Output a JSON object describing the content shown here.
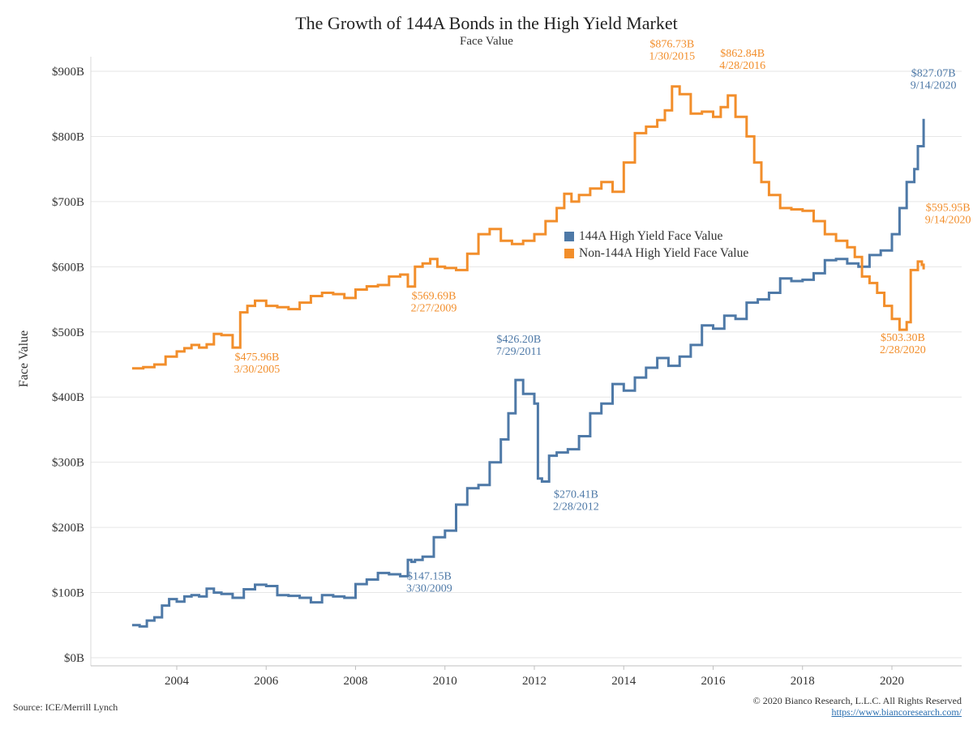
{
  "title": "The Growth of 144A Bonds in the High Yield Market",
  "subtitle": "Face Value",
  "source": "Source: ICE/Merrill Lynch",
  "copyright": "© 2020 Bianco Research, L.L.C. All Rights Reserved",
  "url": "https://www.biancoresearch.com/",
  "chart_data": {
    "type": "line",
    "title": "The Growth of 144A Bonds in the High Yield Market",
    "subtitle": "Face Value",
    "xlabel": "",
    "ylabel": "Face Value",
    "xlim": [
      2002.0,
      2021.5
    ],
    "ylim": [
      0,
      900
    ],
    "x_ticks": [
      2004,
      2006,
      2008,
      2010,
      2012,
      2014,
      2016,
      2018,
      2020
    ],
    "x_tick_labels": [
      "2004",
      "2006",
      "2008",
      "2010",
      "2012",
      "2014",
      "2016",
      "2018",
      "2020"
    ],
    "y_ticks": [
      0,
      100,
      200,
      300,
      400,
      500,
      600,
      700,
      800,
      900
    ],
    "y_tick_labels": [
      "$0B",
      "$100B",
      "$200B",
      "$300B",
      "$400B",
      "$500B",
      "$600B",
      "$700B",
      "$800B",
      "$900B"
    ],
    "grid": "horizontal",
    "line_style": "step",
    "legend_position": "center-right",
    "series": [
      {
        "name": "144A High Yield Face Value",
        "color": "#4e79a7",
        "points": [
          [
            2003.0,
            50
          ],
          [
            2003.17,
            48
          ],
          [
            2003.33,
            57
          ],
          [
            2003.5,
            62
          ],
          [
            2003.67,
            80
          ],
          [
            2003.83,
            90
          ],
          [
            2004.0,
            86
          ],
          [
            2004.17,
            94
          ],
          [
            2004.33,
            96
          ],
          [
            2004.5,
            94
          ],
          [
            2004.67,
            106
          ],
          [
            2004.83,
            100
          ],
          [
            2005.0,
            98
          ],
          [
            2005.25,
            92
          ],
          [
            2005.5,
            105
          ],
          [
            2005.75,
            112
          ],
          [
            2006.0,
            110
          ],
          [
            2006.25,
            96
          ],
          [
            2006.5,
            95
          ],
          [
            2006.75,
            92
          ],
          [
            2007.0,
            85
          ],
          [
            2007.25,
            96
          ],
          [
            2007.5,
            94
          ],
          [
            2007.75,
            92
          ],
          [
            2008.0,
            113
          ],
          [
            2008.25,
            120
          ],
          [
            2008.5,
            130
          ],
          [
            2008.75,
            128
          ],
          [
            2009.0,
            125
          ],
          [
            2009.17,
            150
          ],
          [
            2009.25,
            147.15
          ],
          [
            2009.33,
            150
          ],
          [
            2009.5,
            155
          ],
          [
            2009.75,
            185
          ],
          [
            2010.0,
            195
          ],
          [
            2010.25,
            235
          ],
          [
            2010.5,
            260
          ],
          [
            2010.75,
            265
          ],
          [
            2011.0,
            300
          ],
          [
            2011.25,
            335
          ],
          [
            2011.42,
            375
          ],
          [
            2011.58,
            426.2
          ],
          [
            2011.75,
            405
          ],
          [
            2012.0,
            390
          ],
          [
            2012.08,
            275
          ],
          [
            2012.17,
            270.41
          ],
          [
            2012.33,
            310
          ],
          [
            2012.5,
            315
          ],
          [
            2012.75,
            320
          ],
          [
            2013.0,
            340
          ],
          [
            2013.25,
            375
          ],
          [
            2013.5,
            390
          ],
          [
            2013.75,
            420
          ],
          [
            2014.0,
            410
          ],
          [
            2014.25,
            430
          ],
          [
            2014.5,
            445
          ],
          [
            2014.75,
            460
          ],
          [
            2015.0,
            448
          ],
          [
            2015.25,
            462
          ],
          [
            2015.5,
            480
          ],
          [
            2015.75,
            510
          ],
          [
            2016.0,
            505
          ],
          [
            2016.25,
            525
          ],
          [
            2016.5,
            520
          ],
          [
            2016.75,
            545
          ],
          [
            2017.0,
            550
          ],
          [
            2017.25,
            560
          ],
          [
            2017.5,
            582
          ],
          [
            2017.75,
            578
          ],
          [
            2018.0,
            580
          ],
          [
            2018.25,
            590
          ],
          [
            2018.5,
            610
          ],
          [
            2018.75,
            612
          ],
          [
            2019.0,
            605
          ],
          [
            2019.25,
            600
          ],
          [
            2019.5,
            618
          ],
          [
            2019.75,
            625
          ],
          [
            2020.0,
            650
          ],
          [
            2020.17,
            690
          ],
          [
            2020.33,
            730
          ],
          [
            2020.5,
            750
          ],
          [
            2020.58,
            785
          ],
          [
            2020.71,
            827.07
          ]
        ],
        "annotations": [
          {
            "x": 2009.25,
            "y": 147.15,
            "value": "$147.15B",
            "date": "3/30/2009"
          },
          {
            "x": 2011.58,
            "y": 426.2,
            "value": "$426.20B",
            "date": "7/29/2011"
          },
          {
            "x": 2012.17,
            "y": 270.41,
            "value": "$270.41B",
            "date": "2/28/2012"
          },
          {
            "x": 2020.71,
            "y": 827.07,
            "value": "$827.07B",
            "date": "9/14/2020"
          }
        ]
      },
      {
        "name": "Non-144A High Yield Face Value",
        "color": "#f28e2b",
        "points": [
          [
            2003.0,
            444
          ],
          [
            2003.25,
            446
          ],
          [
            2003.5,
            450
          ],
          [
            2003.75,
            462
          ],
          [
            2004.0,
            470
          ],
          [
            2004.17,
            475
          ],
          [
            2004.33,
            480
          ],
          [
            2004.5,
            476
          ],
          [
            2004.67,
            481
          ],
          [
            2004.83,
            497
          ],
          [
            2005.0,
            495
          ],
          [
            2005.25,
            475.96
          ],
          [
            2005.42,
            530
          ],
          [
            2005.58,
            540
          ],
          [
            2005.75,
            548
          ],
          [
            2006.0,
            540
          ],
          [
            2006.25,
            538
          ],
          [
            2006.5,
            535
          ],
          [
            2006.75,
            545
          ],
          [
            2007.0,
            555
          ],
          [
            2007.25,
            560
          ],
          [
            2007.5,
            558
          ],
          [
            2007.75,
            552
          ],
          [
            2008.0,
            565
          ],
          [
            2008.25,
            570
          ],
          [
            2008.5,
            572
          ],
          [
            2008.75,
            585
          ],
          [
            2009.0,
            588
          ],
          [
            2009.17,
            569.69
          ],
          [
            2009.33,
            600
          ],
          [
            2009.5,
            605
          ],
          [
            2009.67,
            612
          ],
          [
            2009.83,
            600
          ],
          [
            2010.0,
            598
          ],
          [
            2010.25,
            595
          ],
          [
            2010.5,
            620
          ],
          [
            2010.75,
            650
          ],
          [
            2011.0,
            658
          ],
          [
            2011.25,
            640
          ],
          [
            2011.5,
            635
          ],
          [
            2011.75,
            640
          ],
          [
            2012.0,
            650
          ],
          [
            2012.25,
            670
          ],
          [
            2012.5,
            690
          ],
          [
            2012.67,
            712
          ],
          [
            2012.83,
            700
          ],
          [
            2013.0,
            710
          ],
          [
            2013.25,
            720
          ],
          [
            2013.5,
            730
          ],
          [
            2013.75,
            715
          ],
          [
            2014.0,
            760
          ],
          [
            2014.25,
            805
          ],
          [
            2014.5,
            815
          ],
          [
            2014.75,
            825
          ],
          [
            2014.92,
            840
          ],
          [
            2015.08,
            876.73
          ],
          [
            2015.25,
            865
          ],
          [
            2015.5,
            835
          ],
          [
            2015.75,
            838
          ],
          [
            2016.0,
            830
          ],
          [
            2016.17,
            845
          ],
          [
            2016.33,
            862.84
          ],
          [
            2016.5,
            830
          ],
          [
            2016.75,
            800
          ],
          [
            2016.92,
            760
          ],
          [
            2017.08,
            730
          ],
          [
            2017.25,
            710
          ],
          [
            2017.5,
            690
          ],
          [
            2017.75,
            688
          ],
          [
            2018.0,
            686
          ],
          [
            2018.25,
            670
          ],
          [
            2018.5,
            650
          ],
          [
            2018.75,
            640
          ],
          [
            2019.0,
            630
          ],
          [
            2019.17,
            615
          ],
          [
            2019.33,
            585
          ],
          [
            2019.5,
            575
          ],
          [
            2019.67,
            560
          ],
          [
            2019.83,
            540
          ],
          [
            2020.0,
            520
          ],
          [
            2020.17,
            503.3
          ],
          [
            2020.33,
            515
          ],
          [
            2020.42,
            595
          ],
          [
            2020.58,
            608
          ],
          [
            2020.67,
            603
          ],
          [
            2020.71,
            595.95
          ]
        ],
        "annotations": [
          {
            "x": 2005.25,
            "y": 475.96,
            "value": "$475.96B",
            "date": "3/30/2005"
          },
          {
            "x": 2009.17,
            "y": 569.69,
            "value": "$569.69B",
            "date": "2/27/2009"
          },
          {
            "x": 2015.08,
            "y": 876.73,
            "value": "$876.73B",
            "date": "1/30/2015"
          },
          {
            "x": 2016.33,
            "y": 862.84,
            "value": "$862.84B",
            "date": "4/28/2016"
          },
          {
            "x": 2020.17,
            "y": 503.3,
            "value": "$503.30B",
            "date": "2/28/2020"
          },
          {
            "x": 2020.71,
            "y": 595.95,
            "value": "$595.95B",
            "date": "9/14/2020"
          }
        ]
      }
    ]
  }
}
